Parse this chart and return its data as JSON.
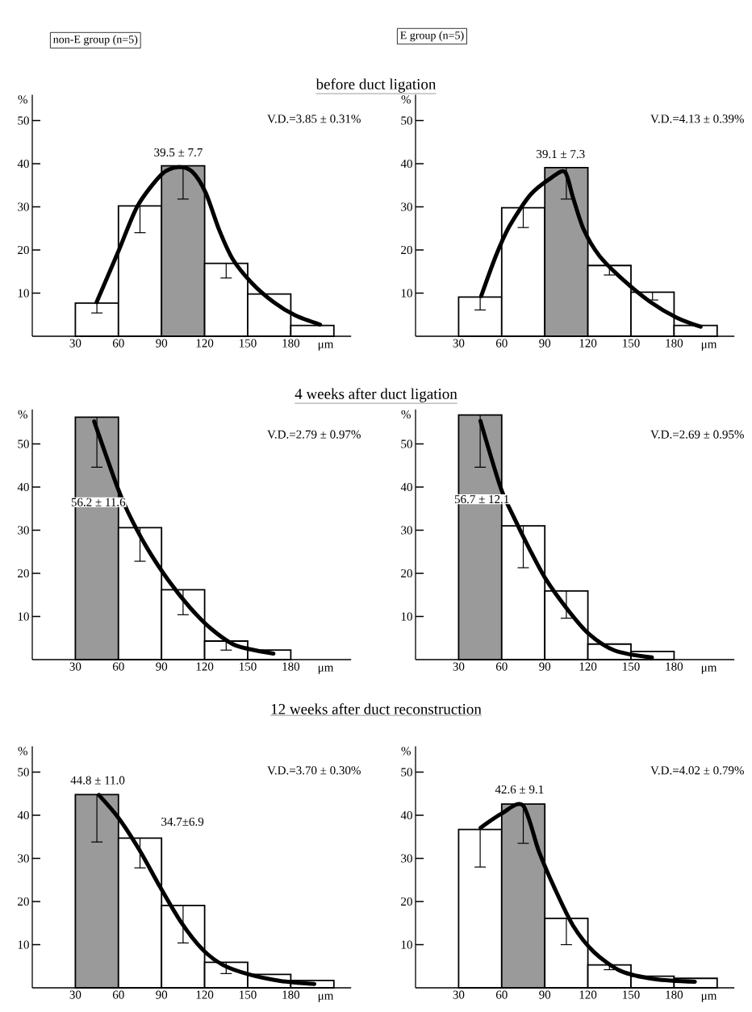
{
  "chart_data": [
    {
      "type": "histogram",
      "title": "before duct ligation",
      "subtitle": "non-E group (n=5)",
      "xlabel": "μm",
      "ylabel": "%",
      "bins": [
        30,
        60,
        90,
        120,
        150,
        180,
        210
      ],
      "values": [
        7.7,
        30.2,
        39.5,
        16.9,
        9.8,
        2.5
      ],
      "colors": [
        "#ffffff",
        "#ffffff",
        "#9a9a9a",
        "#ffffff",
        "#ffffff",
        "#ffffff"
      ],
      "errors": [
        [
          5.4,
          7.7
        ],
        [
          24.0,
          30.2
        ],
        [
          31.8,
          39.5
        ],
        [
          13.5,
          16.9
        ],
        null,
        null
      ],
      "series": [
        {
          "type": "line",
          "color": "#000000",
          "x": [
            44.8,
            60,
            73.3,
            90.3,
            101.7,
            111.2,
            120.7,
            130.2,
            139.7,
            153,
            168.1,
            183.3,
            200.4
          ],
          "values": [
            7.9,
            19.7,
            30.2,
            37.6,
            39.2,
            38.2,
            33.3,
            24.6,
            17.8,
            12.3,
            7.9,
            4.8,
            2.7
          ]
        }
      ],
      "xlim": [
        0,
        222
      ],
      "ylim": [
        0,
        56
      ],
      "xticks": [
        30,
        60,
        90,
        120,
        150,
        180
      ],
      "yticks": [
        10,
        20,
        30,
        40,
        50
      ],
      "annotations": [
        "V.D.=3.85 ± 0.31%",
        "39.5 ± 7.7"
      ]
    },
    {
      "type": "histogram",
      "subtitle": "E group (n=5)",
      "xlabel": "μm",
      "ylabel": "%",
      "bins": [
        30,
        60,
        90,
        120,
        150,
        180,
        210
      ],
      "values": [
        9.1,
        29.8,
        39.1,
        16.4,
        10.2,
        2.5
      ],
      "colors": [
        "#ffffff",
        "#ffffff",
        "#9a9a9a",
        "#ffffff",
        "#ffffff",
        "#ffffff"
      ],
      "errors": [
        [
          6.1,
          9.1
        ],
        [
          25.2,
          29.8
        ],
        [
          31.8,
          39.1
        ],
        [
          14.2,
          16.4
        ],
        [
          8.4,
          10.2
        ],
        null
      ],
      "series": [
        {
          "type": "line",
          "color": "#000000",
          "x": [
            45.7,
            55.9,
            65.2,
            80,
            94.8,
            104,
            109.6,
            117,
            128.1,
            144.8,
            163.3,
            181.9,
            198.5
          ],
          "values": [
            9.3,
            18.6,
            25.4,
            32.8,
            36.8,
            38.1,
            32.2,
            24.8,
            18.6,
            13,
            8,
            4.3,
            2.2
          ]
        }
      ],
      "xlim": [
        0,
        222
      ],
      "ylim": [
        0,
        56
      ],
      "xticks": [
        30,
        60,
        90,
        120,
        150,
        180
      ],
      "yticks": [
        10,
        20,
        30,
        40,
        50
      ],
      "annotations": [
        "V.D.=4.13 ± 0.39%",
        "39.1 ± 7.3"
      ]
    },
    {
      "type": "histogram",
      "title": "4 weeks after duct ligation",
      "xlabel": "μm",
      "ylabel": "%",
      "bins": [
        30,
        60,
        90,
        120,
        150,
        180
      ],
      "values": [
        56.2,
        30.6,
        16.2,
        4.3,
        2.2
      ],
      "colors": [
        "#9a9a9a",
        "#ffffff",
        "#ffffff",
        "#ffffff",
        "#ffffff"
      ],
      "errors": [
        [
          44.6,
          56.2
        ],
        [
          22.8,
          30.6
        ],
        [
          10.4,
          16.2
        ],
        [
          2.2,
          4.3
        ],
        null
      ],
      "series": [
        {
          "type": "line",
          "color": "#000000",
          "x": [
            43.1,
            59.1,
            66.6,
            79.7,
            94.7,
            109.7,
            124.7,
            141.6,
            167.9
          ],
          "values": [
            55.2,
            40.1,
            34.2,
            26,
            18.4,
            12.1,
            7.1,
            3.3,
            1.4
          ]
        }
      ],
      "xlim": [
        0,
        222
      ],
      "ylim": [
        0,
        58
      ],
      "xticks": [
        30,
        60,
        90,
        120,
        150,
        180
      ],
      "yticks": [
        10,
        20,
        30,
        40,
        50
      ],
      "annotations": [
        "V.D.=2.79 ± 0.97%",
        "56.2 ± 11.6"
      ]
    },
    {
      "type": "histogram",
      "xlabel": "μm",
      "ylabel": "%",
      "bins": [
        30,
        60,
        90,
        120,
        150,
        180
      ],
      "values": [
        56.7,
        31.0,
        15.9,
        3.6,
        1.9
      ],
      "colors": [
        "#9a9a9a",
        "#ffffff",
        "#ffffff",
        "#ffffff",
        "#ffffff"
      ],
      "errors": [
        [
          44.6,
          56.7
        ],
        [
          21.3,
          31.0
        ],
        [
          9.6,
          15.9
        ],
        null,
        null
      ],
      "series": [
        {
          "type": "line",
          "color": "#000000",
          "x": [
            45.2,
            59.1,
            68.3,
            79.4,
            90.6,
            105.4,
            120.2,
            138.7,
            164.6
          ],
          "values": [
            55.3,
            40,
            33.1,
            25.6,
            18.7,
            11.8,
            6.1,
            2.1,
            0.5
          ]
        }
      ],
      "xlim": [
        0,
        222
      ],
      "ylim": [
        0,
        58
      ],
      "xticks": [
        30,
        60,
        90,
        120,
        150,
        180
      ],
      "yticks": [
        10,
        20,
        30,
        40,
        50
      ],
      "annotations": [
        "V.D.=2.69 ± 0.95%",
        "56.7 ± 12.1"
      ]
    },
    {
      "type": "histogram",
      "title": "12 weeks after duct reconstruction",
      "xlabel": "μm",
      "ylabel": "%",
      "bins": [
        30,
        60,
        90,
        120,
        150,
        180,
        210
      ],
      "values": [
        44.8,
        34.7,
        19.1,
        5.9,
        3.1,
        1.7
      ],
      "colors": [
        "#9a9a9a",
        "#ffffff",
        "#ffffff",
        "#ffffff",
        "#ffffff",
        "#ffffff"
      ],
      "errors": [
        [
          33.8,
          44.8
        ],
        [
          27.8,
          34.7
        ],
        [
          10.4,
          19.1
        ],
        [
          3.3,
          5.9
        ],
        null,
        null
      ],
      "series": [
        {
          "type": "line",
          "color": "#000000",
          "x": [
            46.4,
            60,
            74.5,
            89.1,
            103.6,
            118.2,
            132.7,
            150.9,
            172.7,
            196.4
          ],
          "values": [
            44.7,
            39.4,
            32,
            23.3,
            15.2,
            9,
            5.3,
            3.1,
            1.6,
            0.9
          ]
        }
      ],
      "xlim": [
        0,
        222
      ],
      "ylim": [
        0,
        56
      ],
      "xticks": [
        30,
        60,
        90,
        120,
        150,
        180
      ],
      "yticks": [
        10,
        20,
        30,
        40,
        50
      ],
      "annotations": [
        "V.D.=3.70 ± 0.30%",
        "44.8 ± 11.0",
        "34.7±6.9"
      ]
    },
    {
      "type": "histogram",
      "xlabel": "μm",
      "ylabel": "%",
      "bins": [
        30,
        60,
        90,
        120,
        150,
        180,
        210
      ],
      "values": [
        36.7,
        42.6,
        16.1,
        5.3,
        2.7,
        2.2
      ],
      "colors": [
        "#ffffff",
        "#9a9a9a",
        "#ffffff",
        "#ffffff",
        "#ffffff",
        "#ffffff"
      ],
      "errors": [
        [
          28.0,
          36.7
        ],
        [
          33.5,
          42.6
        ],
        [
          10.0,
          16.1
        ],
        [
          4.2,
          5.3
        ],
        null,
        null
      ],
      "series": [
        {
          "type": "line",
          "color": "#000000",
          "x": [
            45.3,
            60,
            74.8,
            85.8,
            96.8,
            109.7,
            124.5,
            142.9,
            166.8,
            194.5
          ],
          "values": [
            37.1,
            40.4,
            42.3,
            31.7,
            23.1,
            14.4,
            8.2,
            3.9,
            2,
            1.4
          ]
        }
      ],
      "xlim": [
        0,
        222
      ],
      "ylim": [
        0,
        56
      ],
      "xticks": [
        30,
        60,
        90,
        120,
        150,
        180
      ],
      "yticks": [
        10,
        20,
        30,
        40,
        50
      ],
      "annotations": [
        "V.D.=4.02 ± 0.79%",
        "42.6 ± 9.1"
      ]
    }
  ]
}
